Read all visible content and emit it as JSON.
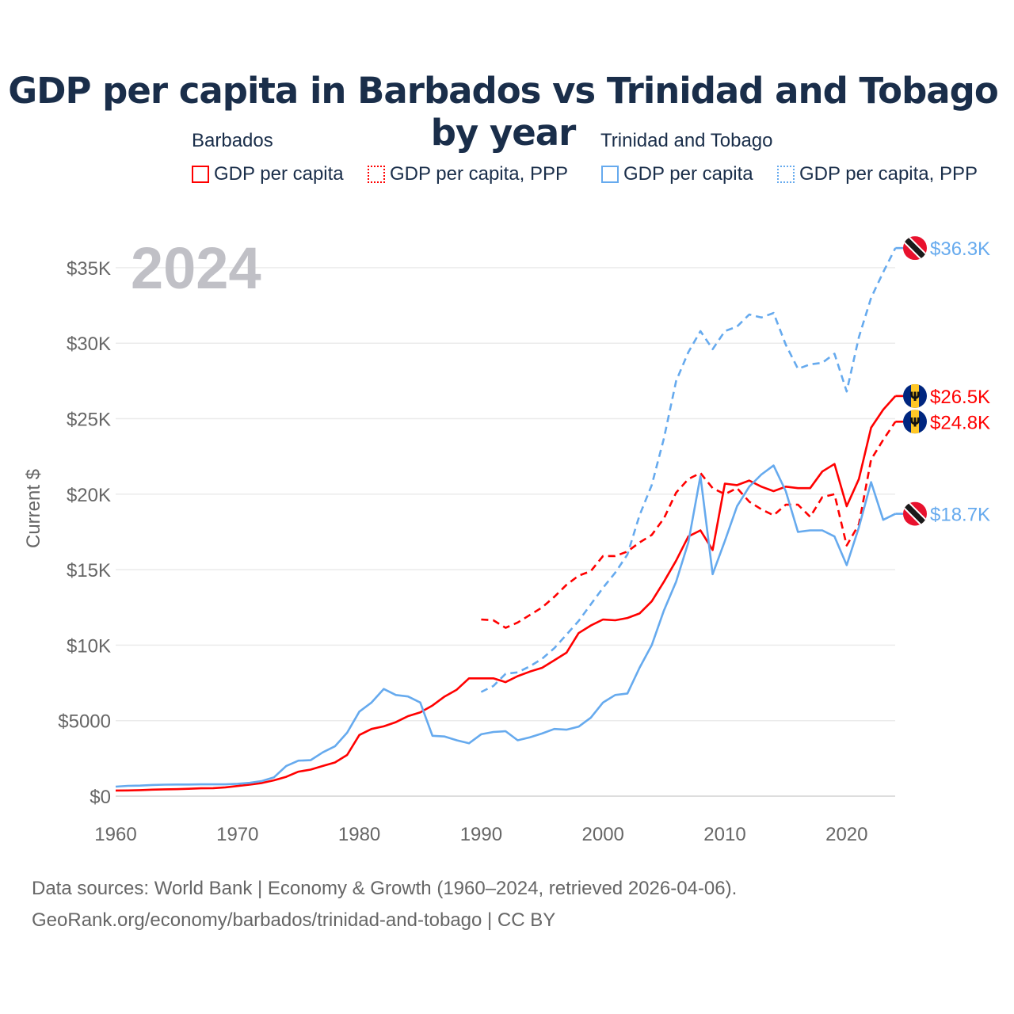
{
  "chart_data": {
    "type": "line",
    "title": "GDP per capita in Barbados vs Trinidad and Tobago by year",
    "ylabel": "Current $",
    "xlabel": "",
    "year_label": "2024",
    "xlim": [
      1960,
      2024
    ],
    "ylim": [
      0,
      37000
    ],
    "x_ticks": [
      1960,
      1970,
      1980,
      1990,
      2000,
      2010,
      2020
    ],
    "x_tick_labels": [
      "1960",
      "1970",
      "1980",
      "1990",
      "2000",
      "2010",
      "2020"
    ],
    "y_ticks": [
      0,
      5000,
      10000,
      15000,
      20000,
      25000,
      30000,
      35000
    ],
    "y_tick_labels": [
      "$0",
      "$5000",
      "$10K",
      "$15K",
      "$20K",
      "$25K",
      "$30K",
      "$35K"
    ],
    "grid": true,
    "legend": {
      "groups": [
        {
          "label": "Barbados",
          "items": [
            "GDP per capita",
            "GDP per capita, PPP"
          ]
        },
        {
          "label": "Trinidad and Tobago",
          "items": [
            "GDP per capita",
            "GDP per capita, PPP"
          ]
        }
      ],
      "placement": "top"
    },
    "series": [
      {
        "name": "Barbados GDP per capita",
        "color": "#ff0000",
        "dash": false,
        "start": 1960,
        "end_label": "$26.5K",
        "flag": "barbados",
        "values": [
          370,
          380,
          400,
          430,
          450,
          460,
          490,
          520,
          530,
          580,
          670,
          760,
          870,
          1050,
          1280,
          1620,
          1760,
          2000,
          2230,
          2730,
          4050,
          4450,
          4620,
          4900,
          5300,
          5550,
          6000,
          6600,
          7050,
          7800,
          7800,
          7800,
          7550,
          7950,
          8250,
          8500,
          9000,
          9500,
          10800,
          11300,
          11700,
          11650,
          11800,
          12100,
          12900,
          14200,
          15600,
          17200,
          17600,
          16300,
          20700,
          20600,
          20900,
          20500,
          20200,
          20500,
          20400,
          20400,
          21500,
          22000,
          19200,
          21000,
          24400,
          25600,
          26500
        ]
      },
      {
        "name": "Barbados GDP per capita, PPP",
        "color": "#ff0000",
        "dash": true,
        "start": 1990,
        "end_label": "$24.8K",
        "flag": "barbados",
        "values": [
          11700,
          11650,
          11150,
          11500,
          12000,
          12500,
          13200,
          14000,
          14600,
          14900,
          15900,
          15900,
          16200,
          16800,
          17300,
          18400,
          20100,
          21000,
          21400,
          20400,
          20000,
          20400,
          19500,
          19000,
          18600,
          19300,
          19300,
          18500,
          19800,
          20000,
          16600,
          18000,
          22300,
          23600,
          24800
        ]
      },
      {
        "name": "Trinidad and Tobago GDP per capita",
        "color": "#66aaee",
        "dash": false,
        "start": 1960,
        "end_label": "$18.7K",
        "flag": "trinidad",
        "values": [
          630,
          680,
          700,
          740,
          760,
          770,
          770,
          780,
          780,
          780,
          820,
          880,
          1000,
          1250,
          2000,
          2350,
          2380,
          2900,
          3300,
          4200,
          5600,
          6200,
          7100,
          6700,
          6600,
          6200,
          4000,
          3950,
          3700,
          3500,
          4100,
          4250,
          4300,
          3700,
          3900,
          4150,
          4450,
          4400,
          4600,
          5200,
          6200,
          6700,
          6800,
          8500,
          10000,
          12300,
          14200,
          16800,
          21200,
          14700,
          16900,
          19200,
          20500,
          21300,
          21900,
          20200,
          17500,
          17600,
          17600,
          17200,
          15300,
          17800,
          20800,
          18300,
          18700
        ]
      },
      {
        "name": "Trinidad and Tobago GDP per capita, PPP",
        "color": "#66aaee",
        "dash": true,
        "start": 1990,
        "end_label": "$36.3K",
        "flag": "trinidad",
        "values": [
          6900,
          7300,
          8100,
          8200,
          8600,
          9100,
          9800,
          10700,
          11600,
          12700,
          13800,
          14800,
          16000,
          18600,
          20600,
          23700,
          27500,
          29400,
          30800,
          29600,
          30800,
          31100,
          31900,
          31700,
          32000,
          29900,
          28300,
          28600,
          28700,
          29300,
          26800,
          30400,
          33000,
          34700,
          36300
        ]
      }
    ]
  },
  "footer": {
    "line1": "Data sources: World Bank | Economy & Growth (1960–2024, retrieved 2026-04-06).",
    "line2": "GeoRank.org/economy/barbados/trinidad-and-tobago | CC BY"
  }
}
